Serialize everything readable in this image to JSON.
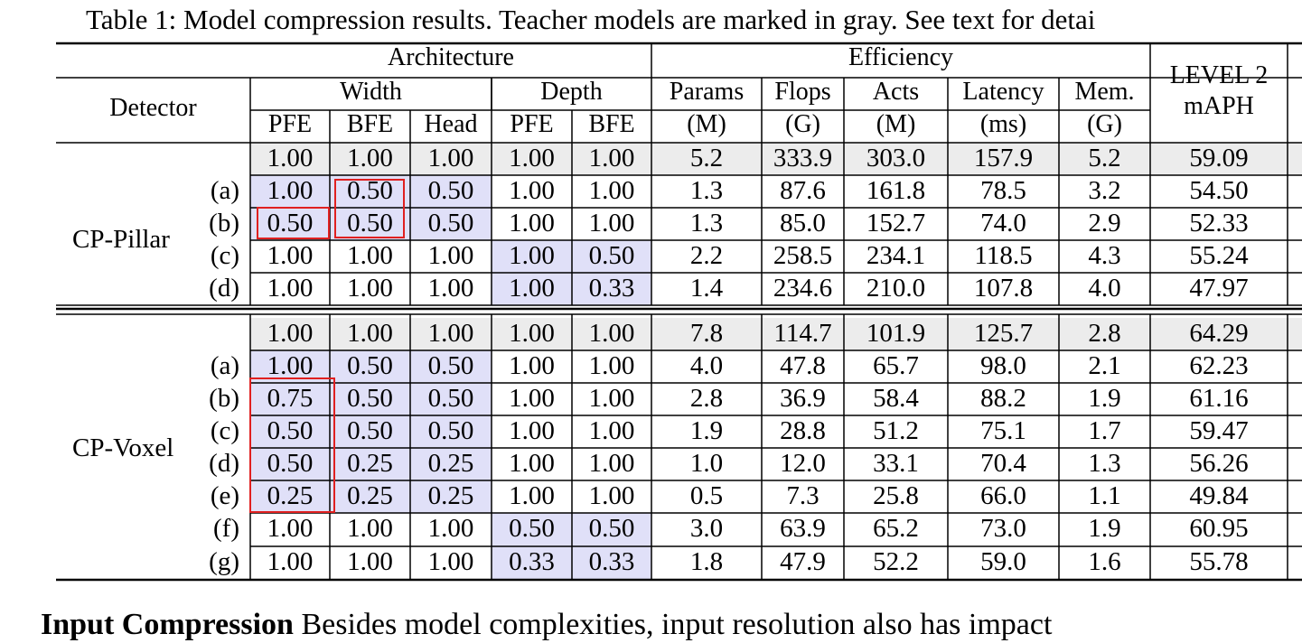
{
  "caption": "Table 1: Model compression results. Teacher models are marked in gray. See text for detai",
  "header": {
    "architecture": "Architecture",
    "efficiency": "Efficiency",
    "detector": "Detector",
    "width": "Width",
    "depth": "Depth",
    "pfe": "PFE",
    "bfe": "BFE",
    "head": "Head",
    "params": "Params",
    "params_unit": "(M)",
    "flops": "Flops",
    "flops_unit": "(G)",
    "acts": "Acts",
    "acts_unit": "(M)",
    "latency": "Latency",
    "latency_unit": "(ms)",
    "mem": "Mem.",
    "mem_unit": "(G)",
    "level2_a": "LEVEL 2",
    "level2_b": "mAPH"
  },
  "groups": [
    {
      "name": "CP-Pillar",
      "rows": [
        {
          "label": "",
          "cells": [
            "1.00",
            "1.00",
            "1.00",
            "1.00",
            "1.00",
            "5.2",
            "333.9",
            "303.0",
            "157.9",
            "5.2",
            "59.09"
          ]
        },
        {
          "label": "(a)",
          "cells": [
            "1.00",
            "0.50",
            "0.50",
            "1.00",
            "1.00",
            "1.3",
            "87.6",
            "161.8",
            "78.5",
            "3.2",
            "54.50"
          ]
        },
        {
          "label": "(b)",
          "cells": [
            "0.50",
            "0.50",
            "0.50",
            "1.00",
            "1.00",
            "1.3",
            "85.0",
            "152.7",
            "74.0",
            "2.9",
            "52.33"
          ]
        },
        {
          "label": "(c)",
          "cells": [
            "1.00",
            "1.00",
            "1.00",
            "1.00",
            "0.50",
            "2.2",
            "258.5",
            "234.1",
            "118.5",
            "4.3",
            "55.24"
          ]
        },
        {
          "label": "(d)",
          "cells": [
            "1.00",
            "1.00",
            "1.00",
            "1.00",
            "0.33",
            "1.4",
            "234.6",
            "210.0",
            "107.8",
            "4.0",
            "47.97"
          ]
        }
      ]
    },
    {
      "name": "CP-Voxel",
      "rows": [
        {
          "label": "",
          "cells": [
            "1.00",
            "1.00",
            "1.00",
            "1.00",
            "1.00",
            "7.8",
            "114.7",
            "101.9",
            "125.7",
            "2.8",
            "64.29"
          ]
        },
        {
          "label": "(a)",
          "cells": [
            "1.00",
            "0.50",
            "0.50",
            "1.00",
            "1.00",
            "4.0",
            "47.8",
            "65.7",
            "98.0",
            "2.1",
            "62.23"
          ]
        },
        {
          "label": "(b)",
          "cells": [
            "0.75",
            "0.50",
            "0.50",
            "1.00",
            "1.00",
            "2.8",
            "36.9",
            "58.4",
            "88.2",
            "1.9",
            "61.16"
          ]
        },
        {
          "label": "(c)",
          "cells": [
            "0.50",
            "0.50",
            "0.50",
            "1.00",
            "1.00",
            "1.9",
            "28.8",
            "51.2",
            "75.1",
            "1.7",
            "59.47"
          ]
        },
        {
          "label": "(d)",
          "cells": [
            "0.50",
            "0.25",
            "0.25",
            "1.00",
            "1.00",
            "1.0",
            "12.0",
            "33.1",
            "70.4",
            "1.3",
            "56.26"
          ]
        },
        {
          "label": "(e)",
          "cells": [
            "0.25",
            "0.25",
            "0.25",
            "1.00",
            "1.00",
            "0.5",
            "7.3",
            "25.8",
            "66.0",
            "1.1",
            "49.84"
          ]
        },
        {
          "label": "(f)",
          "cells": [
            "1.00",
            "1.00",
            "1.00",
            "0.50",
            "0.50",
            "3.0",
            "63.9",
            "65.2",
            "73.0",
            "1.9",
            "60.95"
          ]
        },
        {
          "label": "(g)",
          "cells": [
            "1.00",
            "1.00",
            "1.00",
            "0.33",
            "0.33",
            "1.8",
            "47.9",
            "52.2",
            "59.0",
            "1.6",
            "55.78"
          ]
        }
      ]
    }
  ],
  "bottom_text_bold": "Input Compression",
  "bottom_text_rest": "  Besides model complexities, input resolution also has impact",
  "colors": {
    "teacher_gray": "#ececec",
    "highlight_lavender": "#e0e0f8",
    "box_red": "#e02020"
  }
}
